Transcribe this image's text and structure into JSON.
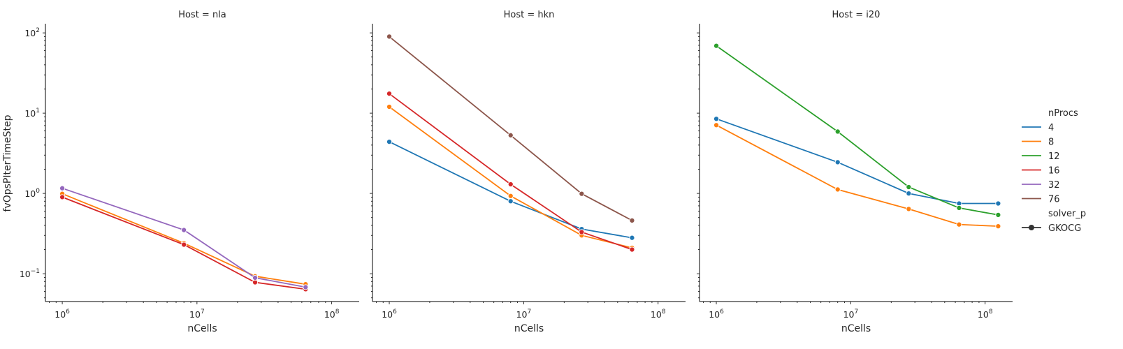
{
  "chart_data": {
    "type": "line",
    "ylabel": "fvOpsPIterTimeStep",
    "y_scale": "log",
    "x_scale": "log",
    "ylim": [
      0.045,
      130
    ],
    "grid": false,
    "legend": {
      "placement": "right",
      "hue_title": "nProcs",
      "hue_entries": [
        "4",
        "8",
        "12",
        "16",
        "32",
        "76"
      ],
      "style_title": "solver_p",
      "style_entries": [
        "GKOCG"
      ]
    },
    "colors": {
      "4": "#1f77b4",
      "8": "#ff7f0e",
      "12": "#2ca02c",
      "16": "#d62728",
      "32": "#9467bd",
      "76": "#8c564b"
    },
    "y_ticks": [
      {
        "value": 0.1,
        "base": "10",
        "exp": "−1"
      },
      {
        "value": 1,
        "base": "10",
        "exp": "0"
      },
      {
        "value": 10,
        "base": "10",
        "exp": "1"
      },
      {
        "value": 100,
        "base": "10",
        "exp": "2"
      }
    ],
    "x_ticks": [
      {
        "value": 1000000,
        "base": "10",
        "exp": "6"
      },
      {
        "value": 10000000,
        "base": "10",
        "exp": "7"
      },
      {
        "value": 100000000,
        "base": "10",
        "exp": "8"
      }
    ],
    "panels": [
      {
        "title": "Host = nla",
        "xlabel": "nCells",
        "xlim": [
          750000,
          160000000
        ],
        "series": [
          {
            "name": "8",
            "x": [
              1000000,
              8000000,
              27000000,
              64000000
            ],
            "y": [
              0.99,
              0.24,
              0.093,
              0.074
            ]
          },
          {
            "name": "16",
            "x": [
              1000000,
              8000000,
              27000000,
              64000000
            ],
            "y": [
              0.9,
              0.23,
              0.078,
              0.064
            ]
          },
          {
            "name": "32",
            "x": [
              1000000,
              8000000,
              27000000,
              64000000
            ],
            "y": [
              1.16,
              0.35,
              0.089,
              0.068
            ]
          }
        ]
      },
      {
        "title": "Host = hkn",
        "xlabel": "nCells",
        "xlim": [
          750000,
          160000000
        ],
        "series": [
          {
            "name": "4",
            "x": [
              1000000,
              8000000,
              27000000,
              64000000
            ],
            "y": [
              4.4,
              0.8,
              0.36,
              0.28
            ]
          },
          {
            "name": "8",
            "x": [
              1000000,
              8000000,
              27000000,
              64000000
            ],
            "y": [
              12.0,
              0.93,
              0.3,
              0.21
            ]
          },
          {
            "name": "16",
            "x": [
              1000000,
              8000000,
              27000000,
              64000000
            ],
            "y": [
              17.5,
              1.3,
              0.33,
              0.2
            ]
          },
          {
            "name": "76",
            "x": [
              1000000,
              8000000,
              27000000,
              64000000
            ],
            "y": [
              90.0,
              5.3,
              0.99,
              0.46
            ]
          }
        ]
      },
      {
        "title": "Host = i20",
        "xlabel": "nCells",
        "xlim": [
          750000,
          160000000
        ],
        "series": [
          {
            "name": "4",
            "x": [
              1000000,
              8000000,
              27000000,
              64000000,
              125000000
            ],
            "y": [
              8.5,
              2.45,
              1.0,
              0.75,
              0.75
            ]
          },
          {
            "name": "8",
            "x": [
              1000000,
              8000000,
              27000000,
              64000000,
              125000000
            ],
            "y": [
              7.1,
              1.12,
              0.64,
              0.41,
              0.39
            ]
          },
          {
            "name": "12",
            "x": [
              1000000,
              8000000,
              27000000,
              64000000,
              125000000
            ],
            "y": [
              69.0,
              5.9,
              1.2,
              0.66,
              0.54
            ]
          }
        ]
      }
    ]
  }
}
